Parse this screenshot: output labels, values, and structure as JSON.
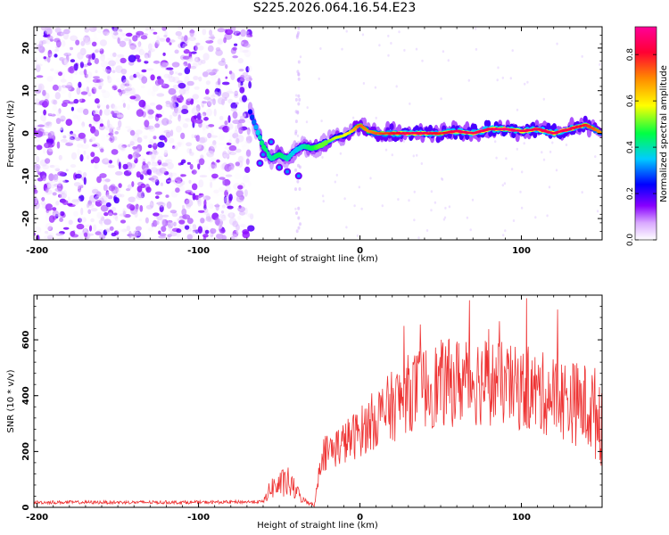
{
  "title": "S225.2026.064.16.54.E23",
  "chart_data": [
    {
      "type": "heatmap",
      "name": "spectrogram",
      "xlabel": "Height of straight line (km)",
      "ylabel": "Frequency (Hz)",
      "xlim": [
        -202,
        150
      ],
      "ylim": [
        -25,
        25
      ],
      "xticks": [
        -200,
        -100,
        0,
        100
      ],
      "yticks": [
        -20,
        -10,
        0,
        10,
        20
      ],
      "colorbar": {
        "label": "Normalized spectral amplitude",
        "range": [
          0,
          0.92
        ],
        "ticks": [
          0.0,
          0.2,
          0.4,
          0.6,
          0.8
        ],
        "colors": [
          "#ffffff",
          "#cc99ff",
          "#8800ff",
          "#0000ff",
          "#00ccff",
          "#00ff44",
          "#ffff00",
          "#ff8800",
          "#ff0033",
          "#ff0099"
        ]
      },
      "noise_region": {
        "x": [
          -202,
          -68
        ],
        "amplitude": 0.25
      },
      "signal_ridge": {
        "x": [
          -68,
          -64,
          -60,
          -55,
          -50,
          -45,
          -40,
          -35,
          -30,
          -25,
          -20,
          -15,
          -10,
          -5,
          0,
          5,
          10,
          20,
          30,
          40,
          50,
          60,
          70,
          80,
          90,
          100,
          110,
          120,
          130,
          140,
          150
        ],
        "freq": [
          5,
          1,
          -3,
          -6,
          -5,
          -6,
          -4,
          -3,
          -3.5,
          -3,
          -2,
          -1,
          -0.5,
          0.5,
          2,
          0.5,
          0,
          0,
          0,
          0,
          0,
          0.5,
          0,
          1,
          1,
          0.5,
          1,
          0,
          1,
          2,
          0
        ],
        "amp": [
          0.3,
          0.4,
          0.5,
          0.45,
          0.5,
          0.45,
          0.4,
          0.45,
          0.5,
          0.55,
          0.55,
          0.6,
          0.6,
          0.65,
          0.75,
          0.7,
          0.75,
          0.8,
          0.85,
          0.85,
          0.8,
          0.85,
          0.85,
          0.85,
          0.9,
          0.85,
          0.85,
          0.85,
          0.85,
          0.8,
          0.7
        ]
      }
    },
    {
      "type": "line",
      "name": "snr",
      "xlabel": "Height of straight line (km)",
      "ylabel": "SNR (10 * v/v)",
      "xlim": [
        -202,
        150
      ],
      "ylim": [
        0,
        760
      ],
      "xticks": [
        -200,
        -100,
        0,
        100
      ],
      "yticks": [
        0,
        200,
        400,
        600
      ],
      "color": "#ee3333",
      "envelope": {
        "x": [
          -202,
          -100,
          -60,
          -55,
          -45,
          -40,
          -35,
          -28,
          -24,
          -20,
          -10,
          0,
          10,
          20,
          30,
          40,
          50,
          60,
          70,
          80,
          90,
          100,
          110,
          120,
          130,
          140,
          150
        ],
        "mean": [
          18,
          18,
          20,
          70,
          90,
          60,
          25,
          10,
          190,
          200,
          230,
          270,
          320,
          360,
          410,
          430,
          440,
          450,
          460,
          450,
          440,
          420,
          410,
          400,
          380,
          360,
          320
        ],
        "spread": [
          6,
          6,
          6,
          40,
          60,
          35,
          12,
          8,
          60,
          70,
          80,
          90,
          110,
          130,
          140,
          150,
          160,
          160,
          170,
          160,
          150,
          150,
          150,
          150,
          150,
          160,
          180
        ]
      }
    }
  ]
}
